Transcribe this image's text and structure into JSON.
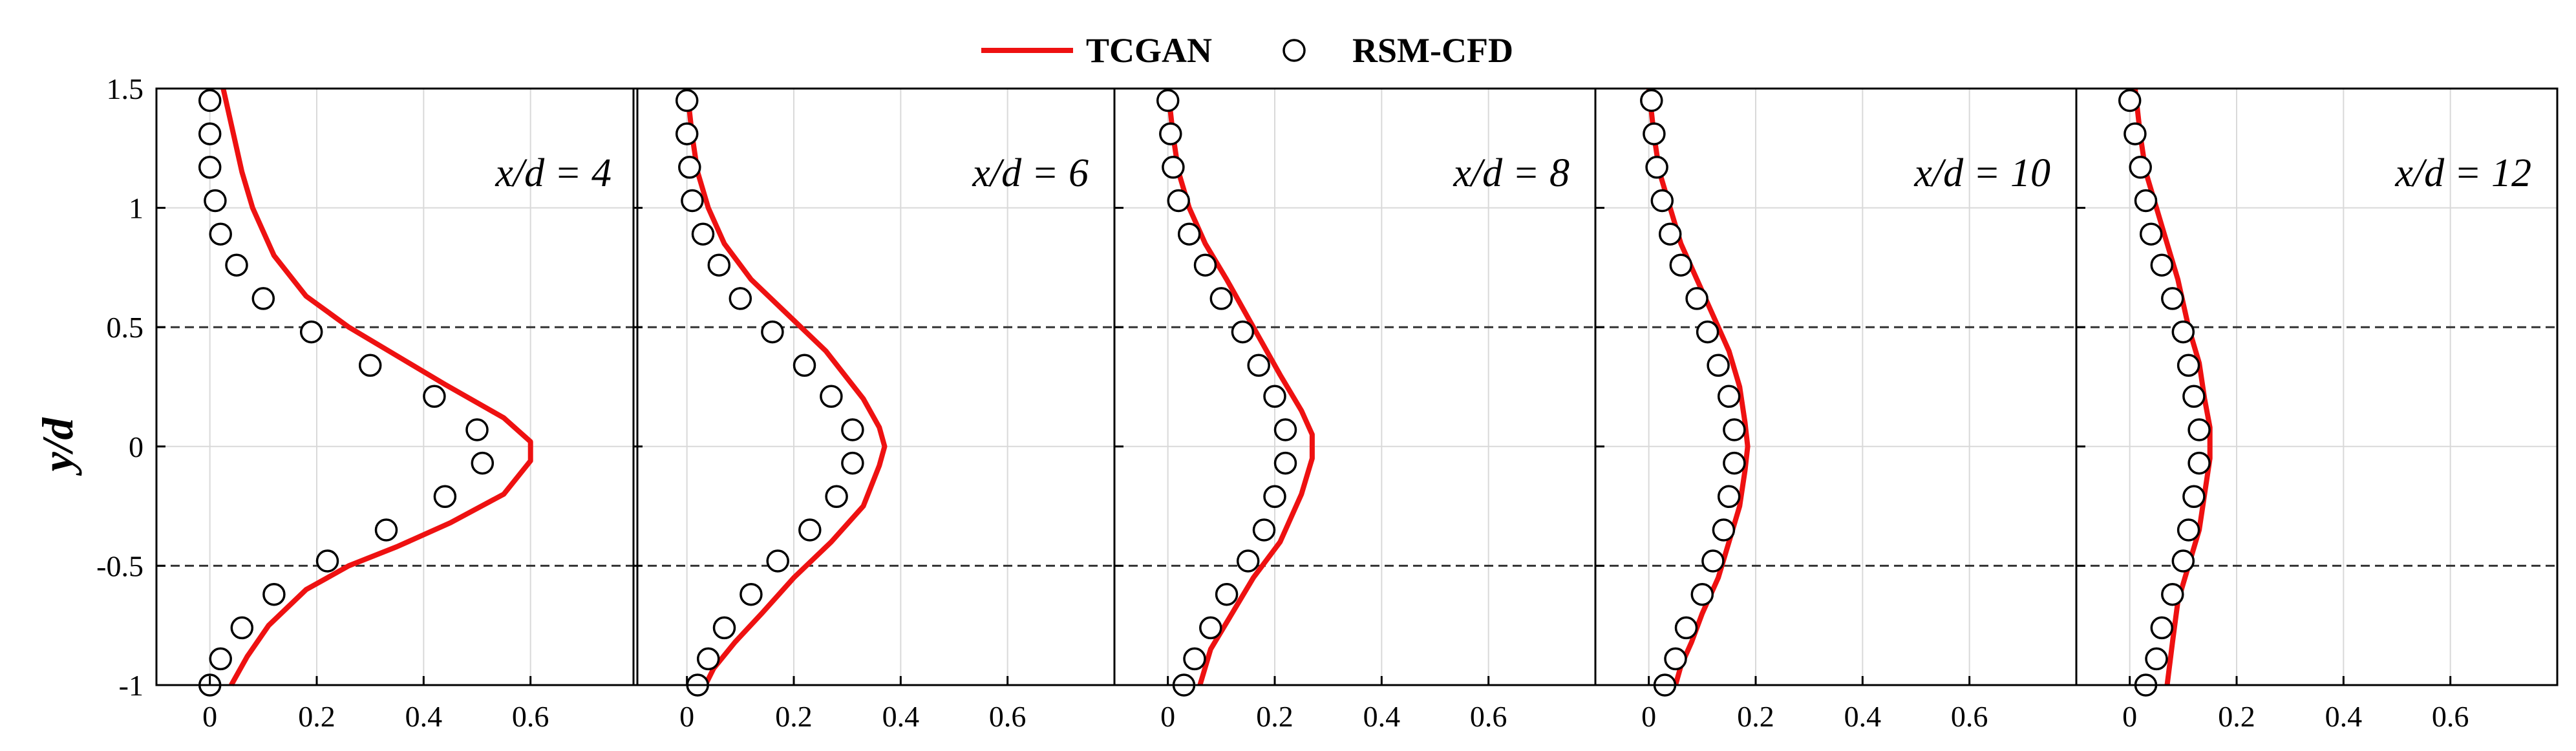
{
  "chart_data": {
    "type": "line",
    "ylabel": "y/d",
    "xlim": [
      -0.1,
      0.8
    ],
    "ylim": [
      -1,
      1.5
    ],
    "xticks": [
      "0",
      "0.2",
      "0.4",
      "0.6"
    ],
    "yticks": [
      "-1",
      "-0.5",
      "0",
      "0.5",
      "1",
      "1.5"
    ],
    "reference_lines_y": [
      0.5,
      -0.5
    ],
    "grid": true,
    "legend": {
      "placement": "top-center",
      "items": [
        {
          "name": "TCGAN",
          "style": "line",
          "color": "#ee1111"
        },
        {
          "name": "RSM-CFD",
          "style": "open-circle",
          "color": "#000000"
        }
      ]
    },
    "panels": [
      {
        "title": "x/d = 4",
        "tcgan": {
          "x": [
            0.025,
            0.045,
            0.06,
            0.08,
            0.12,
            0.18,
            0.26,
            0.35,
            0.44,
            0.55,
            0.6,
            0.6,
            0.55,
            0.45,
            0.35,
            0.26,
            0.18,
            0.11,
            0.07,
            0.04
          ],
          "y": [
            1.5,
            1.3,
            1.15,
            1.0,
            0.8,
            0.63,
            0.5,
            0.38,
            0.26,
            0.12,
            0.02,
            -0.06,
            -0.2,
            -0.32,
            -0.42,
            -0.5,
            -0.6,
            -0.75,
            -0.88,
            -1.0
          ]
        },
        "cfd": {
          "x": [
            0.0,
            0.0,
            0.0,
            0.01,
            0.02,
            0.05,
            0.1,
            0.19,
            0.3,
            0.42,
            0.5,
            0.51,
            0.44,
            0.33,
            0.22,
            0.12,
            0.06,
            0.02,
            0.0
          ],
          "y": [
            1.45,
            1.31,
            1.17,
            1.03,
            0.89,
            0.76,
            0.62,
            0.48,
            0.34,
            0.21,
            0.07,
            -0.07,
            -0.21,
            -0.35,
            -0.48,
            -0.62,
            -0.76,
            -0.89,
            -1.0
          ]
        }
      },
      {
        "title": "x/d = 6",
        "tcgan": {
          "x": [
            0.0,
            0.01,
            0.02,
            0.04,
            0.07,
            0.12,
            0.19,
            0.26,
            0.33,
            0.36,
            0.37,
            0.36,
            0.33,
            0.27,
            0.2,
            0.14,
            0.09,
            0.05,
            0.03
          ],
          "y": [
            1.5,
            1.3,
            1.15,
            1.0,
            0.85,
            0.7,
            0.55,
            0.4,
            0.2,
            0.08,
            0.0,
            -0.08,
            -0.25,
            -0.4,
            -0.55,
            -0.7,
            -0.82,
            -0.93,
            -1.02
          ]
        },
        "cfd": {
          "x": [
            0.0,
            0.0,
            0.005,
            0.01,
            0.03,
            0.06,
            0.1,
            0.16,
            0.22,
            0.27,
            0.31,
            0.31,
            0.28,
            0.23,
            0.17,
            0.12,
            0.07,
            0.04,
            0.02
          ],
          "y": [
            1.45,
            1.31,
            1.17,
            1.03,
            0.89,
            0.76,
            0.62,
            0.48,
            0.34,
            0.21,
            0.07,
            -0.07,
            -0.21,
            -0.35,
            -0.48,
            -0.62,
            -0.76,
            -0.89,
            -1.0
          ]
        }
      },
      {
        "title": "x/d = 8",
        "tcgan": {
          "x": [
            0.0,
            0.01,
            0.02,
            0.04,
            0.07,
            0.11,
            0.16,
            0.21,
            0.25,
            0.27,
            0.27,
            0.25,
            0.21,
            0.16,
            0.12,
            0.08,
            0.06
          ],
          "y": [
            1.5,
            1.3,
            1.15,
            1.0,
            0.85,
            0.7,
            0.5,
            0.3,
            0.15,
            0.05,
            -0.05,
            -0.2,
            -0.4,
            -0.55,
            -0.7,
            -0.85,
            -1.0
          ]
        },
        "cfd": {
          "x": [
            0.0,
            0.005,
            0.01,
            0.02,
            0.04,
            0.07,
            0.1,
            0.14,
            0.17,
            0.2,
            0.22,
            0.22,
            0.2,
            0.18,
            0.15,
            0.11,
            0.08,
            0.05,
            0.03
          ],
          "y": [
            1.45,
            1.31,
            1.17,
            1.03,
            0.89,
            0.76,
            0.62,
            0.48,
            0.34,
            0.21,
            0.07,
            -0.07,
            -0.21,
            -0.35,
            -0.48,
            -0.62,
            -0.76,
            -0.89,
            -1.0
          ]
        }
      },
      {
        "title": "x/d = 10",
        "tcgan": {
          "x": [
            0.0,
            0.01,
            0.02,
            0.04,
            0.06,
            0.09,
            0.12,
            0.15,
            0.17,
            0.18,
            0.185,
            0.18,
            0.17,
            0.15,
            0.13,
            0.1,
            0.08,
            0.06,
            0.05
          ],
          "y": [
            1.5,
            1.3,
            1.15,
            1.0,
            0.85,
            0.7,
            0.55,
            0.4,
            0.25,
            0.1,
            0.0,
            -0.1,
            -0.25,
            -0.4,
            -0.55,
            -0.7,
            -0.82,
            -0.92,
            -1.0
          ]
        },
        "cfd": {
          "x": [
            0.005,
            0.01,
            0.015,
            0.025,
            0.04,
            0.06,
            0.09,
            0.11,
            0.13,
            0.15,
            0.16,
            0.16,
            0.15,
            0.14,
            0.12,
            0.1,
            0.07,
            0.05,
            0.03
          ],
          "y": [
            1.45,
            1.31,
            1.17,
            1.03,
            0.89,
            0.76,
            0.62,
            0.48,
            0.34,
            0.21,
            0.07,
            -0.07,
            -0.21,
            -0.35,
            -0.48,
            -0.62,
            -0.76,
            -0.89,
            -1.0
          ]
        }
      },
      {
        "title": "x/d = 12",
        "tcgan": {
          "x": [
            0.01,
            0.02,
            0.03,
            0.05,
            0.07,
            0.09,
            0.11,
            0.13,
            0.14,
            0.15,
            0.15,
            0.14,
            0.13,
            0.11,
            0.09,
            0.08,
            0.07
          ],
          "y": [
            1.5,
            1.3,
            1.15,
            1.0,
            0.85,
            0.7,
            0.5,
            0.35,
            0.2,
            0.08,
            -0.05,
            -0.2,
            -0.35,
            -0.5,
            -0.65,
            -0.82,
            -1.0
          ]
        },
        "cfd": {
          "x": [
            0.0,
            0.01,
            0.02,
            0.03,
            0.04,
            0.06,
            0.08,
            0.1,
            0.11,
            0.12,
            0.13,
            0.13,
            0.12,
            0.11,
            0.1,
            0.08,
            0.06,
            0.05,
            0.03
          ],
          "y": [
            1.45,
            1.31,
            1.17,
            1.03,
            0.89,
            0.76,
            0.62,
            0.48,
            0.34,
            0.21,
            0.07,
            -0.07,
            -0.21,
            -0.35,
            -0.48,
            -0.62,
            -0.76,
            -0.89,
            -1.0
          ]
        }
      }
    ]
  }
}
